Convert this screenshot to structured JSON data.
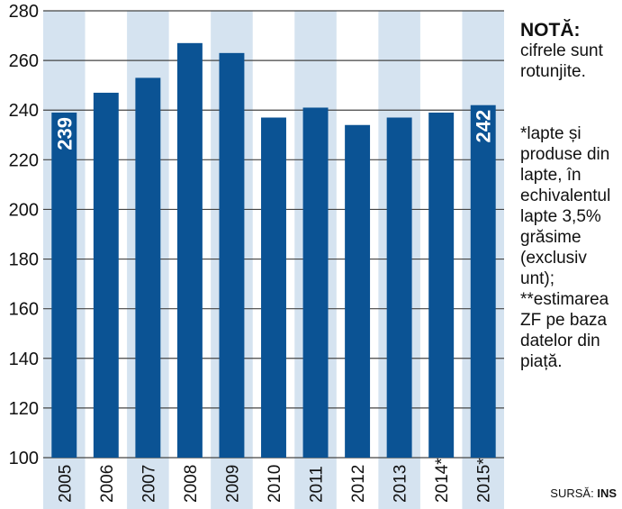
{
  "chart_data": {
    "type": "bar",
    "categories": [
      "2005",
      "2006",
      "2007",
      "2008",
      "2009",
      "2010",
      "2011",
      "2012",
      "2013",
      "2014**",
      "2015**"
    ],
    "values": [
      239,
      247,
      253,
      267,
      263,
      237,
      241,
      234,
      237,
      239,
      242
    ],
    "value_labels": [
      "239",
      null,
      null,
      null,
      null,
      null,
      null,
      null,
      null,
      null,
      "242"
    ],
    "color": "#0b5394",
    "ylim": [
      100,
      280
    ],
    "yticks": [
      100,
      120,
      140,
      160,
      180,
      200,
      220,
      240,
      260,
      280
    ],
    "grid": true,
    "note_title": "NOTĂ:",
    "note_text": "cifrele sunt rotunjite.",
    "footnote": "*lapte și produse din lapte, în echivalentul lapte 3,5% grăsime (exclusiv unt); **estimarea ZF pe baza datelor din piață.",
    "source_label": "SURSĂ:",
    "source": "INS"
  }
}
